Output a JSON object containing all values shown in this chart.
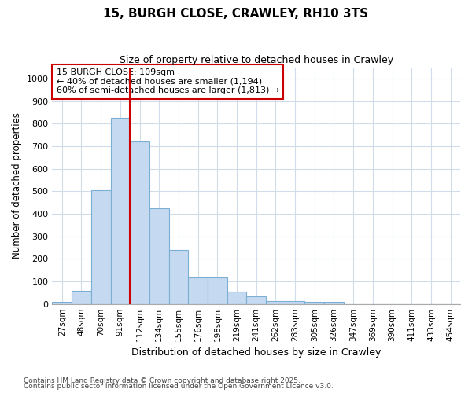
{
  "title": "15, BURGH CLOSE, CRAWLEY, RH10 3TS",
  "subtitle": "Size of property relative to detached houses in Crawley",
  "xlabel": "Distribution of detached houses by size in Crawley",
  "ylabel": "Number of detached properties",
  "bar_labels": [
    "27sqm",
    "48sqm",
    "70sqm",
    "91sqm",
    "112sqm",
    "134sqm",
    "155sqm",
    "176sqm",
    "198sqm",
    "219sqm",
    "241sqm",
    "262sqm",
    "283sqm",
    "305sqm",
    "326sqm",
    "347sqm",
    "369sqm",
    "390sqm",
    "411sqm",
    "433sqm",
    "454sqm"
  ],
  "bar_values": [
    8,
    58,
    505,
    825,
    720,
    425,
    238,
    118,
    118,
    55,
    35,
    12,
    12,
    10,
    10,
    0,
    0,
    0,
    0,
    0,
    0
  ],
  "bar_color": "#c5d9f0",
  "bar_edge_color": "#7bafd4",
  "vline_x_idx": 4,
  "vline_color": "#cc0000",
  "annotation_title": "15 BURGH CLOSE: 109sqm",
  "annotation_line1": "← 40% of detached houses are smaller (1,194)",
  "annotation_line2": "60% of semi-detached houses are larger (1,813) →",
  "annotation_box_color": "#cc0000",
  "ylim": [
    0,
    1050
  ],
  "yticks": [
    0,
    100,
    200,
    300,
    400,
    500,
    600,
    700,
    800,
    900,
    1000
  ],
  "footer_line1": "Contains HM Land Registry data © Crown copyright and database right 2025.",
  "footer_line2": "Contains public sector information licensed under the Open Government Licence v3.0.",
  "bg_color": "#ffffff",
  "plot_bg_color": "#ffffff",
  "grid_color": "#d0dcea"
}
